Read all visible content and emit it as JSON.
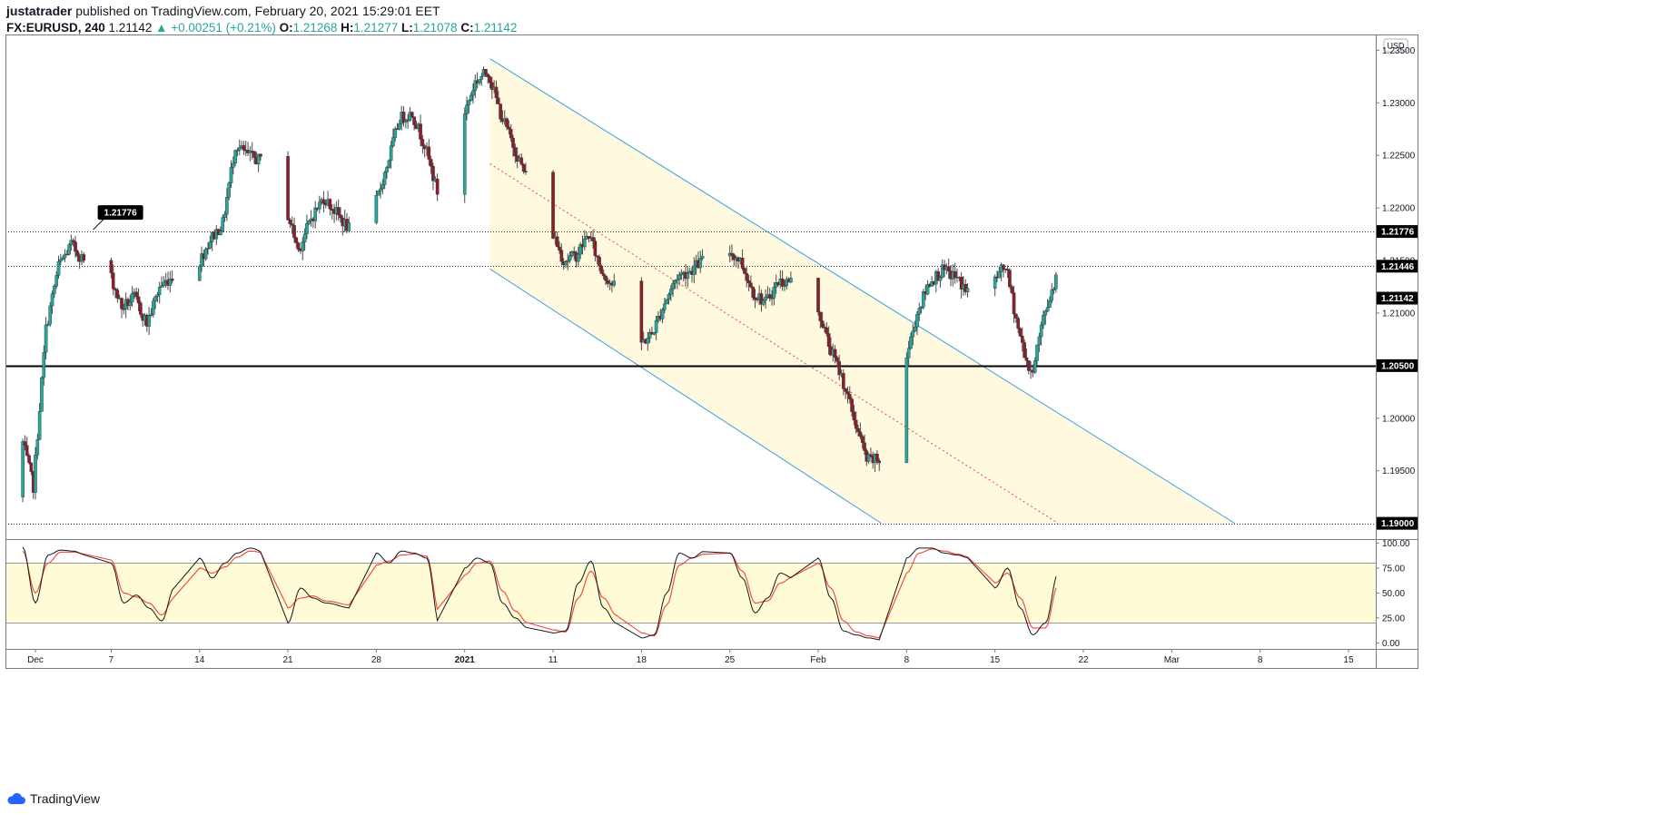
{
  "header": {
    "author": "justatrader",
    "published_text": "published on TradingView.com, February 20, 2021 15:29:01 EET",
    "symbol": "FX:EURUSD, 240",
    "last": "1.21142",
    "change": "▲ +0.00251 (+0.21%)",
    "o_label": "O:",
    "o": "1.21268",
    "h_label": "H:",
    "h": "1.21277",
    "l_label": "L:",
    "l": "1.21078",
    "c_label": "C:",
    "c": "1.21142"
  },
  "footer": {
    "brand": "TradingView"
  },
  "colors": {
    "up": "#26a69a",
    "down": "#8b1e2a",
    "wick": "#4a4a4a",
    "channel_fill": "#fff9dc",
    "channel_line": "#3c9ee5",
    "channel_mid": "#f44336",
    "stoch_k": "#131722",
    "stoch_d": "#f44336",
    "stoch_band": "#fffbd6"
  },
  "chart_data": [
    {
      "type": "candlestick",
      "currency": "USD",
      "ylim": [
        1.1885,
        1.2365
      ],
      "x_tick_labels": [
        "Dec",
        "7",
        "14",
        "21",
        "28",
        "2021",
        "11",
        "18",
        "25",
        "Feb",
        "8",
        "15",
        "22",
        "Mar",
        "8",
        "15"
      ],
      "x_tick_values": [
        "2020-12-01",
        "2020-12-07",
        "2020-12-14",
        "2020-12-21",
        "2020-12-28",
        "2021-01-04",
        "2021-01-11",
        "2021-01-18",
        "2021-01-25",
        "2021-02-01",
        "2021-02-08",
        "2021-02-15",
        "2021-02-22",
        "2021-03-01",
        "2021-03-08",
        "2021-03-15"
      ],
      "y_ticks": [
        "1.23500",
        "1.23000",
        "1.22500",
        "1.22000",
        "1.21500",
        "1.21000",
        "1.20500",
        "1.20000",
        "1.19500",
        "1.19000"
      ],
      "levels": [
        {
          "label": "1.21776",
          "value": 1.21776,
          "style": "dotted"
        },
        {
          "label": "1.21446",
          "value": 1.21446,
          "style": "dotted"
        },
        {
          "label": "1.20500",
          "value": 1.205,
          "style": "solid"
        },
        {
          "label": "1.19000",
          "value": 1.19,
          "style": "dotted"
        }
      ],
      "last_price": {
        "label": "1.21142",
        "value": 1.21142
      },
      "callout": {
        "label": "1.21776",
        "value": 1.21776
      },
      "channel": {
        "upper": [
          [
            "2021-01-06",
            1.2342
          ],
          [
            "2021-03-06",
            1.19
          ]
        ],
        "lower": [
          [
            "2021-01-06",
            1.2142
          ],
          [
            "2021-02-06",
            1.19
          ]
        ],
        "middle": [
          [
            "2021-01-06",
            1.2242
          ],
          [
            "2021-02-20",
            1.19
          ]
        ]
      },
      "path": [
        [
          "2020-11-28",
          1.1925
        ],
        [
          "2020-11-30",
          1.1985
        ],
        [
          "2020-12-01",
          1.1935
        ],
        [
          "2020-12-02",
          1.2085
        ],
        [
          "2020-12-03",
          1.2145
        ],
        [
          "2020-12-04",
          1.2165
        ],
        [
          "2020-12-05",
          1.215
        ],
        [
          "2020-12-07",
          1.214
        ],
        [
          "2020-12-08",
          1.2105
        ],
        [
          "2020-12-09",
          1.2115
        ],
        [
          "2020-12-10",
          1.209
        ],
        [
          "2020-12-11",
          1.2125
        ],
        [
          "2020-12-12",
          1.2135
        ],
        [
          "2020-12-14",
          1.2145
        ],
        [
          "2020-12-15",
          1.217
        ],
        [
          "2020-12-16",
          1.2185
        ],
        [
          "2020-12-17",
          1.226
        ],
        [
          "2020-12-18",
          1.225
        ],
        [
          "2020-12-20",
          1.224
        ],
        [
          "2020-12-21",
          1.22
        ],
        [
          "2020-12-22",
          1.216
        ],
        [
          "2020-12-23",
          1.219
        ],
        [
          "2020-12-24",
          1.221
        ],
        [
          "2020-12-26",
          1.218
        ],
        [
          "2020-12-28",
          1.22
        ],
        [
          "2020-12-29",
          1.224
        ],
        [
          "2020-12-30",
          1.2285
        ],
        [
          "2020-12-31",
          1.229
        ],
        [
          "2021-01-01",
          1.226
        ],
        [
          "2021-01-02",
          1.2215
        ],
        [
          "2021-01-03",
          1.2255
        ],
        [
          "2021-01-04",
          1.2285
        ],
        [
          "2021-01-05",
          1.232
        ],
        [
          "2021-01-06",
          1.233
        ],
        [
          "2021-01-07",
          1.229
        ],
        [
          "2021-01-08",
          1.226
        ],
        [
          "2021-01-09",
          1.223
        ],
        [
          "2021-01-11",
          1.218
        ],
        [
          "2021-01-12",
          1.215
        ],
        [
          "2021-01-13",
          1.2155
        ],
        [
          "2021-01-14",
          1.2175
        ],
        [
          "2021-01-15",
          1.214
        ],
        [
          "2021-01-16",
          1.2125
        ],
        [
          "2021-01-18",
          1.207
        ],
        [
          "2021-01-19",
          1.208
        ],
        [
          "2021-01-20",
          1.211
        ],
        [
          "2021-01-21",
          1.2135
        ],
        [
          "2021-01-22",
          1.214
        ],
        [
          "2021-01-23",
          1.215
        ],
        [
          "2021-01-25",
          1.216
        ],
        [
          "2021-01-26",
          1.215
        ],
        [
          "2021-01-27",
          1.212
        ],
        [
          "2021-01-28",
          1.211
        ],
        [
          "2021-01-29",
          1.213
        ],
        [
          "2021-01-30",
          1.213
        ],
        [
          "2021-02-01",
          1.211
        ],
        [
          "2021-02-02",
          1.207
        ],
        [
          "2021-02-03",
          1.204
        ],
        [
          "2021-02-04",
          1.2
        ],
        [
          "2021-02-05",
          1.196
        ],
        [
          "2021-02-06",
          1.196
        ],
        [
          "2021-02-08",
          1.205
        ],
        [
          "2021-02-09",
          1.21
        ],
        [
          "2021-02-10",
          1.213
        ],
        [
          "2021-02-11",
          1.214
        ],
        [
          "2021-02-12",
          1.2135
        ],
        [
          "2021-02-13",
          1.212
        ],
        [
          "2021-02-14",
          1.2115
        ],
        [
          "2021-02-15",
          1.213
        ],
        [
          "2021-02-16",
          1.2145
        ],
        [
          "2021-02-17",
          1.2085
        ],
        [
          "2021-02-18",
          1.204
        ],
        [
          "2021-02-19",
          1.2095
        ],
        [
          "2021-02-20",
          1.2135
        ],
        [
          "2021-02-21",
          1.2114
        ]
      ]
    },
    {
      "type": "line",
      "name": "stochastic",
      "ylim": [
        -6,
        104
      ],
      "y_ticks": [
        "100.00",
        "75.00",
        "50.00",
        "25.00",
        "0.00"
      ],
      "band": [
        20,
        80
      ],
      "k_path": [
        [
          "2020-11-28",
          72
        ],
        [
          "2020-11-30",
          96
        ],
        [
          "2020-12-01",
          40
        ],
        [
          "2020-12-02",
          88
        ],
        [
          "2020-12-03",
          93
        ],
        [
          "2020-12-04",
          92
        ],
        [
          "2020-12-05",
          88
        ],
        [
          "2020-12-07",
          80
        ],
        [
          "2020-12-08",
          40
        ],
        [
          "2020-12-09",
          48
        ],
        [
          "2020-12-10",
          35
        ],
        [
          "2020-12-11",
          22
        ],
        [
          "2020-12-12",
          55
        ],
        [
          "2020-12-14",
          85
        ],
        [
          "2020-12-15",
          65
        ],
        [
          "2020-12-16",
          80
        ],
        [
          "2020-12-17",
          90
        ],
        [
          "2020-12-18",
          95
        ],
        [
          "2020-12-20",
          85
        ],
        [
          "2020-12-21",
          20
        ],
        [
          "2020-12-22",
          55
        ],
        [
          "2020-12-23",
          45
        ],
        [
          "2020-12-24",
          40
        ],
        [
          "2020-12-26",
          35
        ],
        [
          "2020-12-28",
          90
        ],
        [
          "2020-12-29",
          80
        ],
        [
          "2020-12-30",
          92
        ],
        [
          "2020-12-31",
          90
        ],
        [
          "2021-01-01",
          85
        ],
        [
          "2021-01-02",
          18
        ],
        [
          "2021-01-03",
          60
        ],
        [
          "2021-01-04",
          75
        ],
        [
          "2021-01-05",
          85
        ],
        [
          "2021-01-06",
          80
        ],
        [
          "2021-01-07",
          40
        ],
        [
          "2021-01-08",
          25
        ],
        [
          "2021-01-09",
          15
        ],
        [
          "2021-01-11",
          10
        ],
        [
          "2021-01-12",
          12
        ],
        [
          "2021-01-13",
          60
        ],
        [
          "2021-01-14",
          82
        ],
        [
          "2021-01-15",
          35
        ],
        [
          "2021-01-16",
          20
        ],
        [
          "2021-01-18",
          5
        ],
        [
          "2021-01-19",
          8
        ],
        [
          "2021-01-20",
          50
        ],
        [
          "2021-01-21",
          90
        ],
        [
          "2021-01-22",
          85
        ],
        [
          "2021-01-23",
          92
        ],
        [
          "2021-01-25",
          90
        ],
        [
          "2021-01-26",
          65
        ],
        [
          "2021-01-27",
          30
        ],
        [
          "2021-01-28",
          45
        ],
        [
          "2021-01-29",
          70
        ],
        [
          "2021-01-30",
          65
        ],
        [
          "2021-02-01",
          85
        ],
        [
          "2021-02-02",
          45
        ],
        [
          "2021-02-03",
          12
        ],
        [
          "2021-02-04",
          8
        ],
        [
          "2021-02-05",
          5
        ],
        [
          "2021-02-06",
          3
        ],
        [
          "2021-02-08",
          85
        ],
        [
          "2021-02-09",
          95
        ],
        [
          "2021-02-10",
          95
        ],
        [
          "2021-02-11",
          90
        ],
        [
          "2021-02-12",
          88
        ],
        [
          "2021-02-13",
          85
        ],
        [
          "2021-02-14",
          70
        ],
        [
          "2021-02-15",
          55
        ],
        [
          "2021-02-16",
          75
        ],
        [
          "2021-02-17",
          35
        ],
        [
          "2021-02-18",
          8
        ],
        [
          "2021-02-19",
          20
        ],
        [
          "2021-02-20",
          70
        ],
        [
          "2021-02-21",
          85
        ]
      ],
      "d_path": [
        [
          "2020-11-28",
          66
        ],
        [
          "2020-11-30",
          92
        ],
        [
          "2020-12-01",
          50
        ],
        [
          "2020-12-02",
          80
        ],
        [
          "2020-12-03",
          91
        ],
        [
          "2020-12-04",
          91
        ],
        [
          "2020-12-05",
          89
        ],
        [
          "2020-12-07",
          83
        ],
        [
          "2020-12-08",
          50
        ],
        [
          "2020-12-09",
          46
        ],
        [
          "2020-12-10",
          40
        ],
        [
          "2020-12-11",
          28
        ],
        [
          "2020-12-12",
          45
        ],
        [
          "2020-12-14",
          75
        ],
        [
          "2020-12-15",
          70
        ],
        [
          "2020-12-16",
          76
        ],
        [
          "2020-12-17",
          86
        ],
        [
          "2020-12-18",
          92
        ],
        [
          "2020-12-20",
          88
        ],
        [
          "2020-12-21",
          35
        ],
        [
          "2020-12-22",
          45
        ],
        [
          "2020-12-23",
          47
        ],
        [
          "2020-12-24",
          42
        ],
        [
          "2020-12-26",
          38
        ],
        [
          "2020-12-28",
          78
        ],
        [
          "2020-12-29",
          82
        ],
        [
          "2020-12-30",
          88
        ],
        [
          "2020-12-31",
          89
        ],
        [
          "2021-01-01",
          87
        ],
        [
          "2021-01-02",
          30
        ],
        [
          "2021-01-03",
          48
        ],
        [
          "2021-01-04",
          68
        ],
        [
          "2021-01-05",
          80
        ],
        [
          "2021-01-06",
          82
        ],
        [
          "2021-01-07",
          52
        ],
        [
          "2021-01-08",
          32
        ],
        [
          "2021-01-09",
          20
        ],
        [
          "2021-01-11",
          13
        ],
        [
          "2021-01-12",
          11
        ],
        [
          "2021-01-13",
          45
        ],
        [
          "2021-01-14",
          72
        ],
        [
          "2021-01-15",
          45
        ],
        [
          "2021-01-16",
          28
        ],
        [
          "2021-01-18",
          10
        ],
        [
          "2021-01-19",
          7
        ],
        [
          "2021-01-20",
          38
        ],
        [
          "2021-01-21",
          78
        ],
        [
          "2021-01-22",
          85
        ],
        [
          "2021-01-23",
          89
        ],
        [
          "2021-01-25",
          90
        ],
        [
          "2021-01-26",
          72
        ],
        [
          "2021-01-27",
          40
        ],
        [
          "2021-01-28",
          42
        ],
        [
          "2021-01-29",
          60
        ],
        [
          "2021-01-30",
          66
        ],
        [
          "2021-02-01",
          80
        ],
        [
          "2021-02-02",
          55
        ],
        [
          "2021-02-03",
          22
        ],
        [
          "2021-02-04",
          11
        ],
        [
          "2021-02-05",
          7
        ],
        [
          "2021-02-06",
          5
        ],
        [
          "2021-02-08",
          70
        ],
        [
          "2021-02-09",
          90
        ],
        [
          "2021-02-10",
          94
        ],
        [
          "2021-02-11",
          92
        ],
        [
          "2021-02-12",
          89
        ],
        [
          "2021-02-13",
          86
        ],
        [
          "2021-02-14",
          75
        ],
        [
          "2021-02-15",
          60
        ],
        [
          "2021-02-16",
          70
        ],
        [
          "2021-02-17",
          45
        ],
        [
          "2021-02-18",
          15
        ],
        [
          "2021-02-19",
          15
        ],
        [
          "2021-02-20",
          58
        ],
        [
          "2021-02-21",
          80
        ]
      ]
    }
  ]
}
